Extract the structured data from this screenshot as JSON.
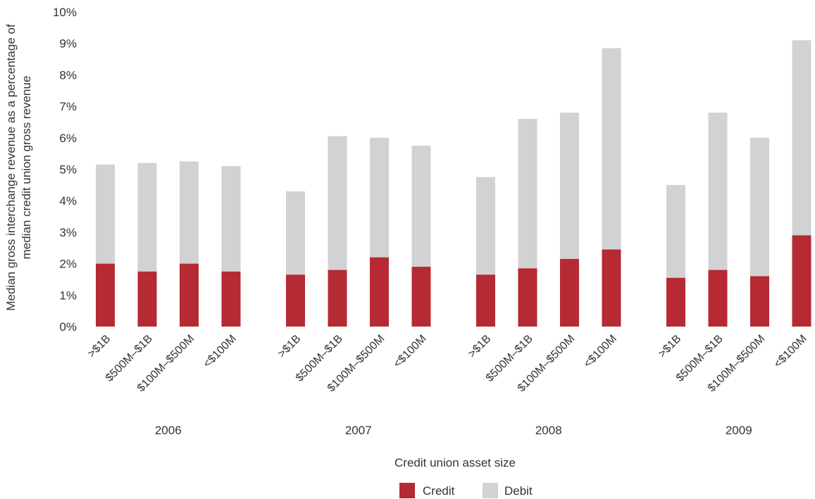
{
  "chart_data": {
    "type": "bar",
    "stacked": true,
    "xlabel": "Credit union asset size",
    "ylabel_lines": [
      "Median gross interchange revenue as a percentage of",
      "median credit union gross revenue"
    ],
    "ylim": [
      0,
      10
    ],
    "yticks": [
      "0%",
      "1%",
      "2%",
      "3%",
      "4%",
      "5%",
      "6%",
      "7%",
      "8%",
      "9%",
      "10%"
    ],
    "grid": false,
    "legend_position": "bottom",
    "groups": [
      {
        "label": "2006",
        "categories": [
          ">$1B",
          "$500M–$1B",
          "$100M–$500M",
          "<$100M"
        ],
        "credit": [
          2.0,
          1.75,
          2.0,
          1.75
        ],
        "total": [
          5.15,
          5.2,
          5.25,
          5.1
        ]
      },
      {
        "label": "2007",
        "categories": [
          ">$1B",
          "$500M–$1B",
          "$100M–$500M",
          "<$100M"
        ],
        "credit": [
          1.65,
          1.8,
          2.2,
          1.9
        ],
        "total": [
          4.3,
          6.05,
          6.0,
          5.75
        ]
      },
      {
        "label": "2008",
        "categories": [
          ">$1B",
          "$500M–$1B",
          "$100M–$500M",
          "<$100M"
        ],
        "credit": [
          1.65,
          1.85,
          2.15,
          2.45
        ],
        "total": [
          4.75,
          6.6,
          6.8,
          8.85
        ]
      },
      {
        "label": "2009",
        "categories": [
          ">$1B",
          "$500M–$1B",
          "$100M–$500M",
          "<$100M"
        ],
        "credit": [
          1.55,
          1.8,
          1.6,
          2.9
        ],
        "total": [
          4.5,
          6.8,
          6.0,
          9.1
        ]
      }
    ],
    "series": [
      {
        "name": "Credit",
        "color": "#b52a33"
      },
      {
        "name": "Debit",
        "color": "#d2d2d4"
      }
    ]
  }
}
